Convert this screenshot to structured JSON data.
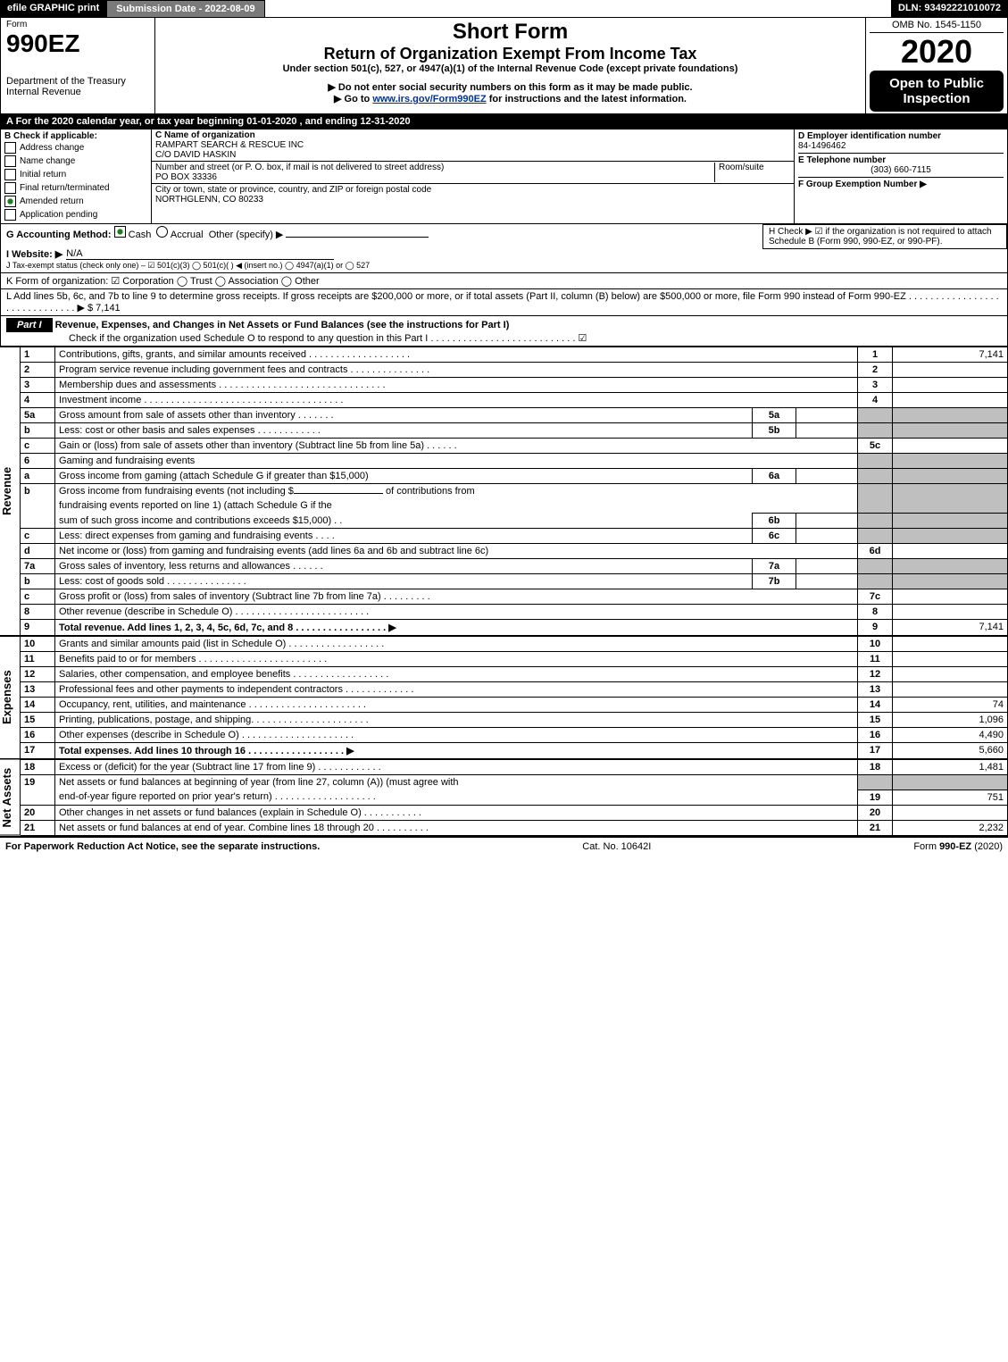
{
  "topbar": {
    "efile": "efile GRAPHIC print",
    "subdate_label": "Submission Date - 2022-08-09",
    "dln": "DLN: 93492221010072"
  },
  "header": {
    "form_label": "Form",
    "form_no": "990EZ",
    "dept": "Department of the Treasury",
    "irs": "Internal Revenue",
    "short_form": "Short Form",
    "title": "Return of Organization Exempt From Income Tax",
    "subtitle": "Under section 501(c), 527, or 4947(a)(1) of the Internal Revenue Code (except private foundations)",
    "warn": "▶ Do not enter social security numbers on this form as it may be made public.",
    "goto_pre": "▶ Go to ",
    "goto_link": "www.irs.gov/Form990EZ",
    "goto_post": " for instructions and the latest information.",
    "omb": "OMB No. 1545-1150",
    "year": "2020",
    "inspection": "Open to Public Inspection"
  },
  "a_line": "A For the 2020 calendar year, or tax year beginning 01-01-2020 , and ending 12-31-2020",
  "b": {
    "title": "B  Check if applicable:",
    "items": [
      "Address change",
      "Name change",
      "Initial return",
      "Final return/terminated",
      "Amended return",
      "Application pending"
    ],
    "checked_idx": 4
  },
  "c": {
    "label_name": "C Name of organization",
    "name1": "RAMPART SEARCH & RESCUE INC",
    "name2": "C/O DAVID HASKIN",
    "label_addr": "Number and street (or P. O. box, if mail is not delivered to street address)",
    "room": "Room/suite",
    "addr": "PO BOX 33336",
    "label_city": "City or town, state or province, country, and ZIP or foreign postal code",
    "city": "NORTHGLENN, CO  80233"
  },
  "d": {
    "label": "D Employer identification number",
    "ein": "84-1496462",
    "e_label": "E Telephone number",
    "phone": "(303) 660-7115",
    "f_label": "F Group Exemption Number  ▶"
  },
  "g": {
    "label": "G Accounting Method:",
    "cash": "Cash",
    "accrual": "Accrual",
    "other": "Other (specify) ▶"
  },
  "h": {
    "text": "H  Check ▶ ☑ if the organization is not required to attach Schedule B (Form 990, 990-EZ, or 990-PF)."
  },
  "i": {
    "label": "I Website: ▶",
    "val": "N/A"
  },
  "j": {
    "label": "J Tax-exempt status (check only one) – ☑ 501(c)(3)  ◯ 501(c)(  ) ◀ (insert no.)  ◯ 4947(a)(1) or  ◯ 527"
  },
  "k": {
    "label": "K Form of organization:  ☑ Corporation   ◯ Trust   ◯ Association   ◯ Other"
  },
  "l": {
    "text": "L Add lines 5b, 6c, and 7b to line 9 to determine gross receipts. If gross receipts are $200,000 or more, or if total assets (Part II, column (B) below) are $500,000 or more, file Form 990 instead of Form 990-EZ  .  .  .  .  .  .  .  .  .  .  .  .  .  .  .  .  .  .  .  .  .  .  .  .  .  .  .  .  .  . ▶ $ 7,141"
  },
  "part1": {
    "label": "Part I",
    "title": "Revenue, Expenses, and Changes in Net Assets or Fund Balances (see the instructions for Part I)",
    "checkline": "Check if the organization used Schedule O to respond to any question in this Part I  .  .  .  .  .  .  .  .  .  .  .  .  .  .  .  .  .  .  .  .  .  .  .  .  .  .  .  ☑"
  },
  "sections": {
    "revenue": "Revenue",
    "expenses": "Expenses",
    "netassets": "Net Assets"
  },
  "revenue_rows": [
    {
      "n": "1",
      "d": "Contributions, gifts, grants, and similar amounts received  .  .  .  .  .  .  .  .  .  .  .  .  .  .  .  .  .  .  .",
      "ref": "1",
      "amt": "7,141"
    },
    {
      "n": "2",
      "d": "Program service revenue including government fees and contracts  .  .  .  .  .  .  .  .  .  .  .  .  .  .  .",
      "ref": "2",
      "amt": ""
    },
    {
      "n": "3",
      "d": "Membership dues and assessments  .  .  .  .  .  .  .  .  .  .  .  .  .  .  .  .  .  .  .  .  .  .  .  .  .  .  .  .  .  .  .",
      "ref": "3",
      "amt": ""
    },
    {
      "n": "4",
      "d": "Investment income  .  .  .  .  .  .  .  .  .  .  .  .  .  .  .  .  .  .  .  .  .  .  .  .  .  .  .  .  .  .  .  .  .  .  .  .  .",
      "ref": "4",
      "amt": ""
    }
  ],
  "rev_sub": {
    "r5a": {
      "n": "5a",
      "d": "Gross amount from sale of assets other than inventory  .  .  .  .  .  .  .",
      "box": "5a"
    },
    "r5b": {
      "n": "b",
      "d": "Less: cost or other basis and sales expenses  .  .  .  .  .  .  .  .  .  .  .  .",
      "box": "5b"
    },
    "r5c": {
      "n": "c",
      "d": "Gain or (loss) from sale of assets other than inventory (Subtract line 5b from line 5a)  .  .  .  .  .  .",
      "ref": "5c"
    },
    "r6": {
      "n": "6",
      "d": "Gaming and fundraising events"
    },
    "r6a": {
      "n": "a",
      "d": "Gross income from gaming (attach Schedule G if greater than $15,000)",
      "box": "6a"
    },
    "r6b": {
      "n": "b",
      "d1": "Gross income from fundraising events (not including $",
      "d2": "of contributions from",
      "d3": "fundraising events reported on line 1) (attach Schedule G if the",
      "d4": "sum of such gross income and contributions exceeds $15,000)  .  .",
      "box": "6b"
    },
    "r6c": {
      "n": "c",
      "d": "Less: direct expenses from gaming and fundraising events  .  .  .  .",
      "box": "6c"
    },
    "r6d": {
      "n": "d",
      "d": "Net income or (loss) from gaming and fundraising events (add lines 6a and 6b and subtract line 6c)",
      "ref": "6d"
    },
    "r7a": {
      "n": "7a",
      "d": "Gross sales of inventory, less returns and allowances  .  .  .  .  .  .",
      "box": "7a"
    },
    "r7b": {
      "n": "b",
      "d": "Less: cost of goods sold      .  .  .  .  .  .  .  .  .  .  .  .  .  .  .",
      "box": "7b"
    },
    "r7c": {
      "n": "c",
      "d": "Gross profit or (loss) from sales of inventory (Subtract line 7b from line 7a)  .  .  .  .  .  .  .  .  .",
      "ref": "7c"
    },
    "r8": {
      "n": "8",
      "d": "Other revenue (describe in Schedule O)  .  .  .  .  .  .  .  .  .  .  .  .  .  .  .  .  .  .  .  .  .  .  .  .  .",
      "ref": "8"
    },
    "r9": {
      "n": "9",
      "d": "Total revenue. Add lines 1, 2, 3, 4, 5c, 6d, 7c, and 8   .  .  .  .  .  .  .  .  .  .  .  .  .  .  .  .  .  ▶",
      "ref": "9",
      "amt": "7,141",
      "bold": true
    }
  },
  "expense_rows": [
    {
      "n": "10",
      "d": "Grants and similar amounts paid (list in Schedule O)  .  .  .  .  .  .  .  .  .  .  .  .  .  .  .  .  .  .",
      "ref": "10",
      "amt": ""
    },
    {
      "n": "11",
      "d": "Benefits paid to or for members      .  .  .  .  .  .  .  .  .  .  .  .  .  .  .  .  .  .  .  .  .  .  .  .",
      "ref": "11",
      "amt": ""
    },
    {
      "n": "12",
      "d": "Salaries, other compensation, and employee benefits  .  .  .  .  .  .  .  .  .  .  .  .  .  .  .  .  .  .",
      "ref": "12",
      "amt": ""
    },
    {
      "n": "13",
      "d": "Professional fees and other payments to independent contractors  .  .  .  .  .  .  .  .  .  .  .  .  .",
      "ref": "13",
      "amt": ""
    },
    {
      "n": "14",
      "d": "Occupancy, rent, utilities, and maintenance  .  .  .  .  .  .  .  .  .  .  .  .  .  .  .  .  .  .  .  .  .  .",
      "ref": "14",
      "amt": "74"
    },
    {
      "n": "15",
      "d": "Printing, publications, postage, and shipping.  .  .  .  .  .  .  .  .  .  .  .  .  .  .  .  .  .  .  .  .  .",
      "ref": "15",
      "amt": "1,096"
    },
    {
      "n": "16",
      "d": "Other expenses (describe in Schedule O)     .  .  .  .  .  .  .  .  .  .  .  .  .  .  .  .  .  .  .  .  .",
      "ref": "16",
      "amt": "4,490"
    },
    {
      "n": "17",
      "d": "Total expenses. Add lines 10 through 16     .  .  .  .  .  .  .  .  .  .  .  .  .  .  .  .  .  .  ▶",
      "ref": "17",
      "amt": "5,660",
      "bold": true
    }
  ],
  "net_rows": [
    {
      "n": "18",
      "d": "Excess or (deficit) for the year (Subtract line 17 from line 9)       .  .  .  .  .  .  .  .  .  .  .  .",
      "ref": "18",
      "amt": "1,481"
    },
    {
      "n": "19",
      "d": "Net assets or fund balances at beginning of year (from line 27, column (A)) (must agree with",
      "d2": "end-of-year figure reported on prior year's return)  .  .  .  .  .  .  .  .  .  .  .  .  .  .  .  .  .  .  .",
      "ref": "19",
      "amt": "751"
    },
    {
      "n": "20",
      "d": "Other changes in net assets or fund balances (explain in Schedule O)  .  .  .  .  .  .  .  .  .  .  .",
      "ref": "20",
      "amt": ""
    },
    {
      "n": "21",
      "d": "Net assets or fund balances at end of year. Combine lines 18 through 20  .  .  .  .  .  .  .  .  .  .",
      "ref": "21",
      "amt": "2,232"
    }
  ],
  "footer": {
    "left": "For Paperwork Reduction Act Notice, see the separate instructions.",
    "mid": "Cat. No. 10642I",
    "right_pre": "Form ",
    "right_bold": "990-EZ",
    "right_post": " (2020)"
  }
}
